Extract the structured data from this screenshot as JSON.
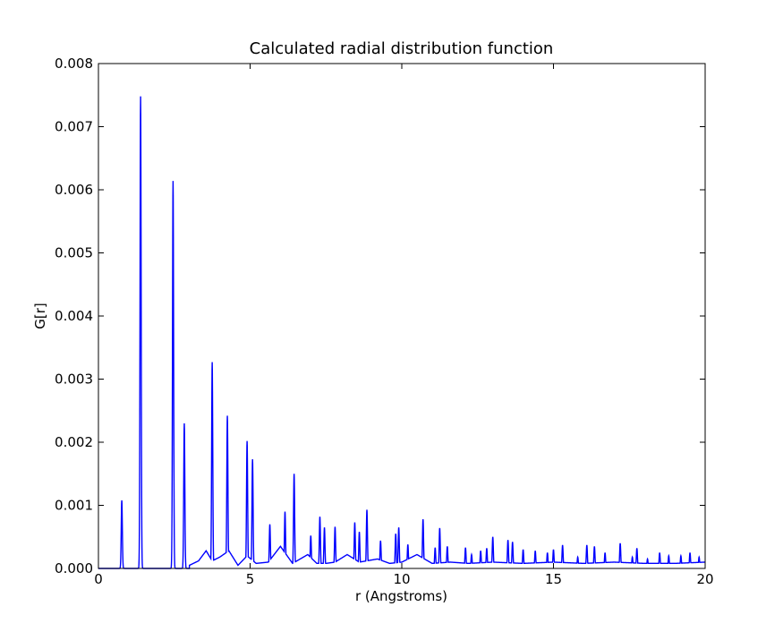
{
  "chart_data": {
    "type": "line",
    "title": "Calculated radial distribution function",
    "xlabel": "r (Angstroms)",
    "ylabel": "G[r]",
    "xlim": [
      0,
      20
    ],
    "ylim": [
      0,
      0.008
    ],
    "xticks": [
      0,
      5,
      10,
      15,
      20
    ],
    "xtick_labels": [
      "0",
      "5",
      "10",
      "15",
      "20"
    ],
    "yticks": [
      0,
      0.001,
      0.002,
      0.003,
      0.004,
      0.005,
      0.006,
      0.007,
      0.008
    ],
    "ytick_labels": [
      "0.000",
      "0.001",
      "0.002",
      "0.003",
      "0.004",
      "0.005",
      "0.006",
      "0.007",
      "0.008"
    ],
    "grid": false,
    "line_color": "#0000ff",
    "background": [
      [
        3.0,
        5e-05
      ],
      [
        3.3,
        0.00012
      ],
      [
        3.55,
        0.00028
      ],
      [
        3.75,
        0.00012
      ],
      [
        4.0,
        0.00018
      ],
      [
        4.3,
        0.00028
      ],
      [
        4.6,
        5e-05
      ],
      [
        4.9,
        0.0002
      ],
      [
        5.2,
        8e-05
      ],
      [
        5.6,
        0.0001
      ],
      [
        6.0,
        0.00035
      ],
      [
        6.4,
        8e-05
      ],
      [
        6.9,
        0.00022
      ],
      [
        7.2,
        8e-05
      ],
      [
        7.5,
        8e-05
      ],
      [
        7.8,
        0.0001
      ],
      [
        8.2,
        0.00022
      ],
      [
        8.6,
        0.0001
      ],
      [
        9.2,
        0.00015
      ],
      [
        9.6,
        8e-05
      ],
      [
        10.0,
        0.0001
      ],
      [
        10.5,
        0.00022
      ],
      [
        11.0,
        8e-05
      ],
      [
        11.6,
        0.0001
      ],
      [
        12.2,
        8e-05
      ],
      [
        13.0,
        0.0001
      ],
      [
        14.0,
        8e-05
      ],
      [
        15.0,
        0.0001
      ],
      [
        16.0,
        8e-05
      ],
      [
        17.0,
        0.0001
      ],
      [
        18.0,
        8e-05
      ],
      [
        19.0,
        8e-05
      ],
      [
        20.0,
        0.0001
      ]
    ],
    "peaks": [
      [
        0.77,
        0.00108
      ],
      [
        1.39,
        0.00748
      ],
      [
        2.46,
        0.00614
      ],
      [
        2.83,
        0.0023
      ],
      [
        3.75,
        0.00327
      ],
      [
        4.25,
        0.00242
      ],
      [
        4.9,
        0.00202
      ],
      [
        5.08,
        0.00173
      ],
      [
        5.65,
        0.0007
      ],
      [
        6.15,
        0.0009
      ],
      [
        6.45,
        0.0015
      ],
      [
        7.0,
        0.00052
      ],
      [
        7.3,
        0.00082
      ],
      [
        7.45,
        0.00065
      ],
      [
        7.8,
        0.00066
      ],
      [
        8.45,
        0.00073
      ],
      [
        8.6,
        0.00058
      ],
      [
        8.85,
        0.00093
      ],
      [
        9.3,
        0.00044
      ],
      [
        9.8,
        0.00055
      ],
      [
        9.9,
        0.00065
      ],
      [
        10.2,
        0.00038
      ],
      [
        10.7,
        0.00078
      ],
      [
        11.1,
        0.00033
      ],
      [
        11.25,
        0.00064
      ],
      [
        11.5,
        0.00035
      ],
      [
        12.1,
        0.00033
      ],
      [
        12.3,
        0.00022
      ],
      [
        12.6,
        0.00028
      ],
      [
        12.8,
        0.00032
      ],
      [
        13.0,
        0.0005
      ],
      [
        13.5,
        0.00045
      ],
      [
        13.65,
        0.00042
      ],
      [
        14.0,
        0.0003
      ],
      [
        14.4,
        0.00028
      ],
      [
        14.8,
        0.00025
      ],
      [
        15.0,
        0.0003
      ],
      [
        15.3,
        0.00037
      ],
      [
        15.8,
        0.00018
      ],
      [
        16.1,
        0.00037
      ],
      [
        16.35,
        0.00035
      ],
      [
        16.7,
        0.00025
      ],
      [
        17.2,
        0.0004
      ],
      [
        17.6,
        0.00018
      ],
      [
        17.75,
        0.00032
      ],
      [
        18.1,
        0.00015
      ],
      [
        18.5,
        0.00025
      ],
      [
        18.8,
        0.0002
      ],
      [
        19.2,
        0.0002
      ],
      [
        19.5,
        0.00025
      ],
      [
        19.8,
        0.00018
      ]
    ]
  }
}
